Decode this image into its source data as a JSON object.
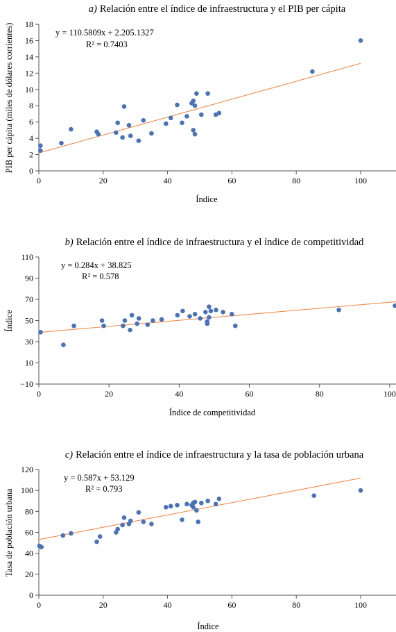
{
  "chart_data": [
    {
      "type": "scatter",
      "panel": "a",
      "title_prefix": "a)",
      "title": "Relación entre el índice de infraestructura y el PIB per cápita",
      "xlabel": "Índice",
      "ylabel": "PIB per cápita (miles de dólares corrientes)",
      "equation": "y = 110.5809x + 2.205.1327",
      "r2": "R² = 0.7403",
      "xlim": [
        0,
        100
      ],
      "ylim": [
        0,
        18
      ],
      "xticks": [
        0,
        20,
        40,
        60,
        80,
        100
      ],
      "yticks": [
        0,
        2,
        4,
        6,
        8,
        10,
        12,
        14,
        16,
        18
      ],
      "grid": false,
      "colors": {
        "points": "#4a72b8",
        "trend": "#f08a4b",
        "axis": "#555555"
      },
      "trendline": {
        "x": [
          0,
          100
        ],
        "y": [
          2.2,
          13.2
        ]
      },
      "points": [
        {
          "x": 0.5,
          "y": 3.1
        },
        {
          "x": 0.5,
          "y": 2.5
        },
        {
          "x": 7,
          "y": 3.4
        },
        {
          "x": 10,
          "y": 5.1
        },
        {
          "x": 18,
          "y": 4.8
        },
        {
          "x": 18.5,
          "y": 4.5
        },
        {
          "x": 24,
          "y": 4.7
        },
        {
          "x": 24.5,
          "y": 5.9
        },
        {
          "x": 26,
          "y": 4.1
        },
        {
          "x": 26.5,
          "y": 7.9
        },
        {
          "x": 28,
          "y": 5.6
        },
        {
          "x": 28.5,
          "y": 4.3
        },
        {
          "x": 31,
          "y": 3.7
        },
        {
          "x": 32.5,
          "y": 6.2
        },
        {
          "x": 35,
          "y": 4.6
        },
        {
          "x": 39.5,
          "y": 5.8
        },
        {
          "x": 41,
          "y": 6.5
        },
        {
          "x": 43,
          "y": 8.1
        },
        {
          "x": 44.5,
          "y": 5.9
        },
        {
          "x": 46,
          "y": 6.7
        },
        {
          "x": 47.5,
          "y": 8.3
        },
        {
          "x": 48,
          "y": 5.0
        },
        {
          "x": 48,
          "y": 8.6
        },
        {
          "x": 48.5,
          "y": 4.5
        },
        {
          "x": 48.5,
          "y": 8.0
        },
        {
          "x": 49,
          "y": 9.5
        },
        {
          "x": 50.5,
          "y": 6.9
        },
        {
          "x": 52.5,
          "y": 9.5
        },
        {
          "x": 55,
          "y": 6.9
        },
        {
          "x": 56,
          "y": 7.1
        },
        {
          "x": 85,
          "y": 12.2
        },
        {
          "x": 100,
          "y": 16.0
        }
      ]
    },
    {
      "type": "scatter",
      "panel": "b",
      "title_prefix": "b)",
      "title": "Relación entre el índice de infraestructura y el índice de competitividad",
      "xlabel": "Índice de competitividad",
      "ylabel": "Índice",
      "equation": "y = 0.284x + 38.825",
      "r2": "R² = 0.578",
      "xlim": [
        0,
        102
      ],
      "ylim": [
        -10,
        110
      ],
      "xticks": [
        0,
        20,
        40,
        60,
        80,
        100
      ],
      "yticks": [
        -10,
        10,
        30,
        50,
        70,
        90,
        110
      ],
      "grid": false,
      "colors": {
        "points": "#4a72b8",
        "trend": "#f08a4b",
        "axis": "#555555"
      },
      "trendline": {
        "x": [
          0,
          102
        ],
        "y": [
          38.8,
          67.8
        ]
      },
      "points": [
        {
          "x": 0.5,
          "y": 39
        },
        {
          "x": 7,
          "y": 27
        },
        {
          "x": 10,
          "y": 45
        },
        {
          "x": 18,
          "y": 50
        },
        {
          "x": 18.5,
          "y": 45
        },
        {
          "x": 24,
          "y": 45
        },
        {
          "x": 24.5,
          "y": 50
        },
        {
          "x": 26,
          "y": 41
        },
        {
          "x": 26.5,
          "y": 55
        },
        {
          "x": 28,
          "y": 47
        },
        {
          "x": 28.5,
          "y": 52
        },
        {
          "x": 31,
          "y": 46
        },
        {
          "x": 32.5,
          "y": 50
        },
        {
          "x": 35,
          "y": 51
        },
        {
          "x": 39.5,
          "y": 55
        },
        {
          "x": 41,
          "y": 59
        },
        {
          "x": 43,
          "y": 54
        },
        {
          "x": 44.5,
          "y": 56
        },
        {
          "x": 46,
          "y": 52
        },
        {
          "x": 47.5,
          "y": 58
        },
        {
          "x": 48,
          "y": 47
        },
        {
          "x": 48,
          "y": 49
        },
        {
          "x": 48.5,
          "y": 53
        },
        {
          "x": 48.5,
          "y": 63
        },
        {
          "x": 49,
          "y": 59
        },
        {
          "x": 50.5,
          "y": 60
        },
        {
          "x": 52.5,
          "y": 58
        },
        {
          "x": 55,
          "y": 56
        },
        {
          "x": 56,
          "y": 45
        },
        {
          "x": 85.5,
          "y": 60
        },
        {
          "x": 101.5,
          "y": 64
        }
      ]
    },
    {
      "type": "scatter",
      "panel": "c",
      "title_prefix": "c)",
      "title": "Relación entre el índice de infraestructura y la tasa de población urbana",
      "xlabel": "Índice",
      "ylabel": "Tasa de población urbana",
      "equation": "y = 0.587x + 53.129",
      "r2": "R² = 0.793",
      "xlim": [
        0,
        100
      ],
      "ylim": [
        0,
        120
      ],
      "xticks": [
        0,
        20,
        40,
        60,
        80,
        100
      ],
      "yticks": [
        0,
        20,
        40,
        60,
        80,
        100,
        120
      ],
      "grid": false,
      "colors": {
        "points": "#4a72b8",
        "trend": "#f08a4b",
        "axis": "#555555"
      },
      "trendline": {
        "x": [
          0,
          100
        ],
        "y": [
          53.1,
          111.8
        ]
      },
      "points": [
        {
          "x": 0.2,
          "y": 47
        },
        {
          "x": 0.8,
          "y": 46
        },
        {
          "x": 7.5,
          "y": 57
        },
        {
          "x": 10,
          "y": 59
        },
        {
          "x": 18,
          "y": 51
        },
        {
          "x": 19,
          "y": 56
        },
        {
          "x": 24,
          "y": 60
        },
        {
          "x": 24.5,
          "y": 63
        },
        {
          "x": 26,
          "y": 67
        },
        {
          "x": 26.5,
          "y": 74
        },
        {
          "x": 28,
          "y": 68
        },
        {
          "x": 28.5,
          "y": 71
        },
        {
          "x": 31,
          "y": 79
        },
        {
          "x": 32.5,
          "y": 70
        },
        {
          "x": 35,
          "y": 68
        },
        {
          "x": 39.5,
          "y": 84
        },
        {
          "x": 41,
          "y": 85
        },
        {
          "x": 43,
          "y": 86
        },
        {
          "x": 44.5,
          "y": 72
        },
        {
          "x": 46,
          "y": 87
        },
        {
          "x": 47.5,
          "y": 86
        },
        {
          "x": 48,
          "y": 84
        },
        {
          "x": 48,
          "y": 88
        },
        {
          "x": 48.5,
          "y": 89
        },
        {
          "x": 49,
          "y": 81
        },
        {
          "x": 49.5,
          "y": 70
        },
        {
          "x": 50.5,
          "y": 88
        },
        {
          "x": 52.5,
          "y": 90
        },
        {
          "x": 55,
          "y": 87
        },
        {
          "x": 56,
          "y": 92
        },
        {
          "x": 85.5,
          "y": 95
        },
        {
          "x": 100,
          "y": 100
        }
      ]
    }
  ]
}
